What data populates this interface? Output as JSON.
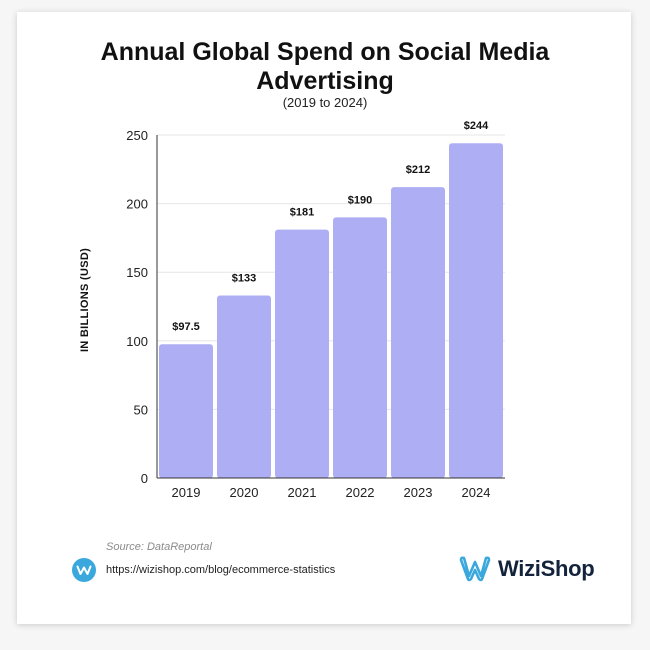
{
  "brand": {
    "name": "WiziShop",
    "primary_color": "#14233c",
    "accent_color": "#3aa8dd",
    "logo_icon": "wizishop-w-logo-icon"
  },
  "footer": {
    "source": "Source: DataReportal",
    "url": "https://wizishop.com/blog/ecommerce-statistics",
    "link_icon": "wizishop-circle-icon"
  },
  "chart_data": {
    "type": "bar",
    "title_line1": "Annual Global Spend on Social Media",
    "title_line2": "Advertising",
    "subtitle": "(2019 to 2024)",
    "xlabel": "",
    "ylabel": "IN BILLIONS (USD)",
    "categories": [
      "2019",
      "2020",
      "2021",
      "2022",
      "2023",
      "2024"
    ],
    "values": [
      97.5,
      133,
      181,
      190,
      212,
      244
    ],
    "data_labels": [
      "$97.5",
      "$133",
      "$181",
      "$190",
      "$212",
      "$244"
    ],
    "yticks": [
      0,
      50,
      100,
      150,
      200,
      250
    ],
    "ylim": [
      0,
      250
    ],
    "grid": true,
    "bar_color": "#aeaef5",
    "legend": "none"
  }
}
